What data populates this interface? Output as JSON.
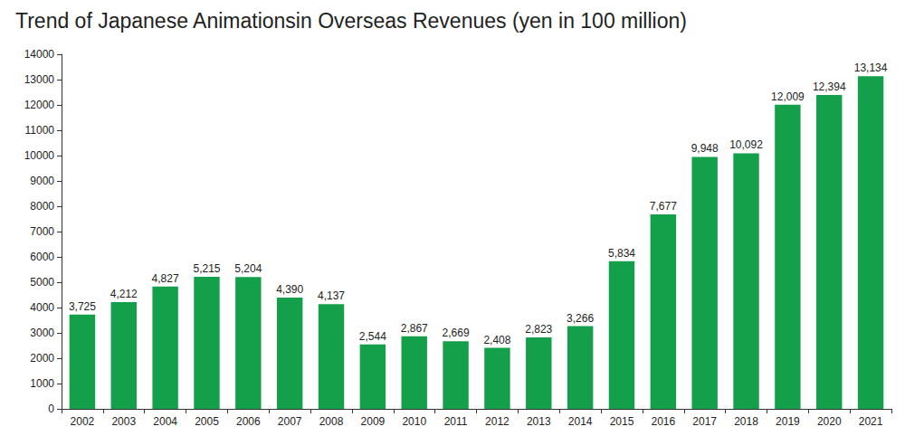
{
  "chart_data": {
    "type": "bar",
    "title": "Trend of Japanese Animationsin Overseas Revenues (yen in 100 million)",
    "categories": [
      "2002",
      "2003",
      "2004",
      "2005",
      "2006",
      "2007",
      "2008",
      "2009",
      "2010",
      "2011",
      "2012",
      "2013",
      "2014",
      "2015",
      "2016",
      "2017",
      "2018",
      "2019",
      "2020",
      "2021"
    ],
    "values": [
      3725,
      4212,
      4827,
      5215,
      5204,
      4390,
      4137,
      2544,
      2867,
      2669,
      2408,
      2823,
      3266,
      5834,
      7677,
      9948,
      10092,
      12009,
      12394,
      13134
    ],
    "value_labels": [
      "3,725",
      "4,212",
      "4,827",
      "5,215",
      "5,204",
      "4,390",
      "4,137",
      "2,544",
      "2,867",
      "2,669",
      "2,408",
      "2,823",
      "3,266",
      "5,834",
      "7,677",
      "9,948",
      "10,092",
      "12,009",
      "12,394",
      "13,134"
    ],
    "color": "#14a04a",
    "ylim": [
      0,
      14000
    ],
    "yticks": [
      0,
      1000,
      2000,
      3000,
      4000,
      5000,
      6000,
      7000,
      8000,
      9000,
      10000,
      11000,
      12000,
      13000,
      14000
    ],
    "grid": false,
    "data_labels": true
  }
}
